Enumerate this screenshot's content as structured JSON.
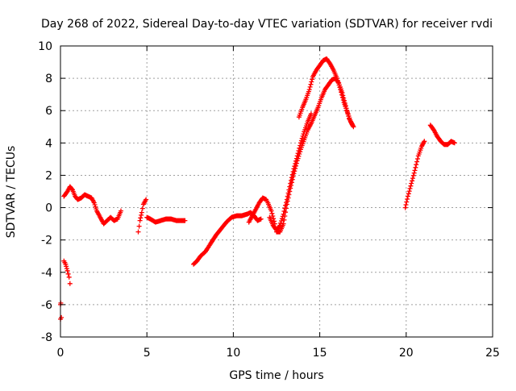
{
  "chart_data": {
    "type": "scatter",
    "title": "Day 268 of 2022, Sidereal Day-to-day VTEC variation (SDTVAR) for receiver rvdi",
    "xlabel": "GPS time / hours",
    "ylabel": "SDTVAR / TECUs",
    "xlim": [
      0,
      25
    ],
    "ylim": [
      -8,
      10
    ],
    "xticks": [
      0,
      5,
      10,
      15,
      20,
      25
    ],
    "yticks": [
      -8,
      -6,
      -4,
      -2,
      0,
      2,
      4,
      6,
      8,
      10
    ],
    "grid": true,
    "legend": "none",
    "marker": "+",
    "color": "#ff0000",
    "series": [
      {
        "name": "seg-0",
        "points": [
          [
            0.0,
            -6.9
          ],
          [
            0.05,
            -6.8
          ]
        ]
      },
      {
        "name": "seg-1",
        "points": [
          [
            0.0,
            -6.0
          ],
          [
            0.02,
            -5.9
          ]
        ]
      },
      {
        "name": "seg-2",
        "points": [
          [
            0.2,
            -3.3
          ],
          [
            0.3,
            -3.5
          ],
          [
            0.4,
            -3.9
          ],
          [
            0.5,
            -4.3
          ],
          [
            0.55,
            -4.7
          ]
        ]
      },
      {
        "name": "seg-3",
        "points": [
          [
            0.2,
            0.7
          ],
          [
            0.4,
            1.0
          ],
          [
            0.55,
            1.3
          ],
          [
            0.7,
            1.1
          ],
          [
            0.85,
            0.7
          ],
          [
            1.0,
            0.5
          ],
          [
            1.2,
            0.6
          ],
          [
            1.4,
            0.8
          ],
          [
            1.6,
            0.7
          ],
          [
            1.8,
            0.6
          ],
          [
            1.95,
            0.3
          ],
          [
            2.1,
            -0.2
          ],
          [
            2.3,
            -0.6
          ],
          [
            2.5,
            -1.0
          ],
          [
            2.7,
            -0.8
          ],
          [
            2.9,
            -0.6
          ],
          [
            3.1,
            -0.8
          ],
          [
            3.3,
            -0.7
          ],
          [
            3.5,
            -0.2
          ]
        ]
      },
      {
        "name": "seg-4",
        "points": [
          [
            4.5,
            -1.5
          ],
          [
            4.6,
            -0.8
          ],
          [
            4.7,
            -0.3
          ],
          [
            4.8,
            0.2
          ],
          [
            4.95,
            0.5
          ]
        ]
      },
      {
        "name": "seg-5",
        "points": [
          [
            5.0,
            -0.6
          ],
          [
            5.2,
            -0.7
          ],
          [
            5.5,
            -0.9
          ],
          [
            5.8,
            -0.8
          ],
          [
            6.1,
            -0.7
          ],
          [
            6.4,
            -0.7
          ],
          [
            6.7,
            -0.8
          ],
          [
            7.0,
            -0.8
          ],
          [
            7.2,
            -0.8
          ]
        ]
      },
      {
        "name": "seg-6",
        "points": [
          [
            7.7,
            -3.5
          ],
          [
            7.9,
            -3.3
          ],
          [
            8.1,
            -3.0
          ],
          [
            8.4,
            -2.7
          ],
          [
            8.7,
            -2.2
          ],
          [
            9.0,
            -1.7
          ],
          [
            9.3,
            -1.3
          ],
          [
            9.6,
            -0.9
          ],
          [
            9.9,
            -0.6
          ],
          [
            10.2,
            -0.5
          ],
          [
            10.5,
            -0.5
          ],
          [
            10.8,
            -0.4
          ],
          [
            11.0,
            -0.3
          ],
          [
            11.2,
            -0.5
          ],
          [
            11.4,
            -0.8
          ],
          [
            11.6,
            -0.7
          ]
        ]
      },
      {
        "name": "seg-7",
        "points": [
          [
            10.9,
            -0.9
          ],
          [
            11.1,
            -0.5
          ],
          [
            11.3,
            -0.1
          ],
          [
            11.5,
            0.3
          ],
          [
            11.7,
            0.6
          ],
          [
            11.9,
            0.5
          ],
          [
            12.0,
            0.3
          ],
          [
            12.2,
            -0.2
          ],
          [
            12.4,
            -1.0
          ],
          [
            12.5,
            -1.5
          ],
          [
            12.7,
            -1.5
          ],
          [
            12.9,
            -1.0
          ],
          [
            13.1,
            0.2
          ],
          [
            13.3,
            1.2
          ],
          [
            13.5,
            2.1
          ],
          [
            13.7,
            2.9
          ],
          [
            13.9,
            3.6
          ],
          [
            14.1,
            4.2
          ],
          [
            14.3,
            4.8
          ],
          [
            14.5,
            5.2
          ],
          [
            14.7,
            5.7
          ],
          [
            14.9,
            6.2
          ],
          [
            15.1,
            6.8
          ],
          [
            15.3,
            7.3
          ],
          [
            15.5,
            7.6
          ],
          [
            15.7,
            7.9
          ],
          [
            15.9,
            8.0
          ],
          [
            16.1,
            7.7
          ],
          [
            16.3,
            7.1
          ],
          [
            16.5,
            6.3
          ],
          [
            16.7,
            5.5
          ],
          [
            16.9,
            5.1
          ]
        ]
      },
      {
        "name": "seg-8",
        "points": [
          [
            12.1,
            -0.6
          ],
          [
            12.3,
            -1.1
          ],
          [
            12.5,
            -1.4
          ],
          [
            12.7,
            -1.1
          ],
          [
            12.9,
            -0.4
          ],
          [
            13.1,
            0.5
          ],
          [
            13.3,
            1.5
          ],
          [
            13.5,
            2.4
          ],
          [
            13.7,
            3.2
          ],
          [
            13.9,
            4.0
          ],
          [
            14.1,
            4.7
          ],
          [
            14.3,
            5.3
          ],
          [
            14.5,
            5.8
          ]
        ]
      },
      {
        "name": "seg-9",
        "points": [
          [
            13.8,
            5.6
          ],
          [
            14.0,
            6.2
          ],
          [
            14.2,
            6.7
          ],
          [
            14.4,
            7.3
          ],
          [
            14.6,
            8.1
          ],
          [
            14.8,
            8.5
          ],
          [
            15.0,
            8.8
          ],
          [
            15.2,
            9.1
          ],
          [
            15.4,
            9.2
          ],
          [
            15.6,
            8.9
          ],
          [
            15.8,
            8.5
          ],
          [
            16.0,
            8.0
          ],
          [
            16.2,
            7.3
          ],
          [
            16.4,
            6.5
          ],
          [
            16.6,
            5.9
          ],
          [
            16.8,
            5.3
          ],
          [
            16.95,
            5.0
          ]
        ]
      },
      {
        "name": "seg-10",
        "points": [
          [
            19.95,
            0.0
          ],
          [
            20.1,
            0.7
          ],
          [
            20.3,
            1.5
          ],
          [
            20.5,
            2.3
          ],
          [
            20.7,
            3.2
          ],
          [
            20.9,
            3.8
          ],
          [
            21.05,
            4.1
          ]
        ]
      },
      {
        "name": "seg-11",
        "points": [
          [
            21.4,
            5.1
          ],
          [
            21.6,
            4.8
          ],
          [
            21.8,
            4.4
          ],
          [
            22.0,
            4.1
          ],
          [
            22.2,
            3.9
          ],
          [
            22.4,
            3.9
          ],
          [
            22.6,
            4.1
          ],
          [
            22.8,
            4.0
          ]
        ]
      }
    ]
  }
}
